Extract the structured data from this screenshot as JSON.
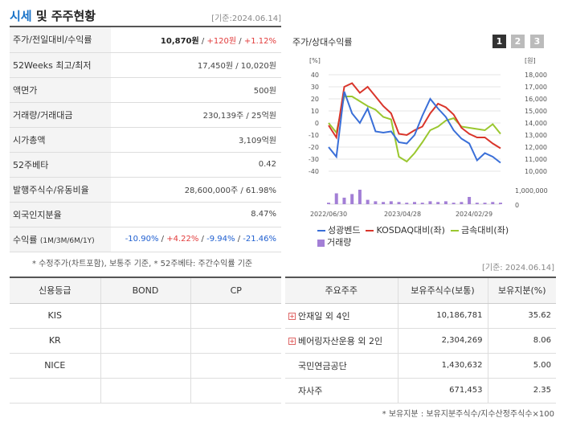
{
  "header": {
    "title_a": "시세",
    "title_b": " 및 주주현황",
    "date": "[기준:2024.06.14]"
  },
  "quote": {
    "rows": [
      {
        "label": "주가/전일대비/수익률",
        "price": "10,870원",
        "sep1": " / ",
        "change": "+120원",
        "sep2": " / ",
        "rate": "+1.12%"
      },
      {
        "label": "52Weeks 최고/최저",
        "value": "17,450원 / 10,020원"
      },
      {
        "label": "액면가",
        "value": "500원"
      },
      {
        "label": "거래량/거래대금",
        "value": "230,139주 / 25억원"
      },
      {
        "label": "시가총액",
        "value": "3,109억원"
      },
      {
        "label": "52주베타",
        "value": "0.42"
      },
      {
        "label": "발행주식수/유동비율",
        "value": "28,600,000주 / 61.98%"
      },
      {
        "label": "외국인지분율",
        "value": "8.47%"
      },
      {
        "label": "수익률",
        "label_sub": "(1M/3M/6M/1Y)",
        "r1": "-10.90%",
        "r2": "+4.22%",
        "r3": "-9.94%",
        "r4": "-21.46%",
        "sep": "/ "
      }
    ],
    "note": "* 수정주가(차트포함), 보통주 기준, * 52주베타: 주간수익률 기준"
  },
  "chart": {
    "title": "주가/상대수익률",
    "tabs": [
      "1",
      "2",
      "3"
    ],
    "left_unit": "[%]",
    "right_unit": "[원]",
    "left_ticks": [
      "40",
      "30",
      "20",
      "10",
      "0",
      "-10",
      "-20",
      "-30",
      "-40"
    ],
    "right_ticks": [
      "18,000",
      "17,000",
      "16,000",
      "15,000",
      "14,000",
      "13,000",
      "12,000",
      "11,000",
      "10,000"
    ],
    "vol_tick_top": "1,000,000",
    "vol_tick_bottom": "0",
    "x_ticks": [
      "2022/06/30",
      "2023/04/28",
      "2024/02/29"
    ],
    "legend": [
      "성광벤드",
      "KOSDAQ대비(좌)",
      "금속대비(좌)",
      "거래량"
    ],
    "colors": {
      "stock": "#3a6fd8",
      "kosdaq": "#d9352b",
      "metal": "#9ac72f",
      "volume": "#a37fd6"
    }
  },
  "chart_data": {
    "type": "line",
    "x_ticks": [
      "2022/06/30",
      "2023/04/28",
      "2024/02/29"
    ],
    "left_ylim": [
      -40,
      40
    ],
    "right_ylim": [
      10000,
      18000
    ],
    "series": [
      {
        "name": "성광벤드",
        "axis": "left",
        "values": [
          -20,
          -28,
          26,
          8,
          0,
          12,
          -7,
          -8,
          -7,
          -16,
          -17,
          -10,
          6,
          20,
          12,
          5,
          -6,
          -13,
          -17,
          -31,
          -25,
          -28,
          -33
        ]
      },
      {
        "name": "KOSDAQ대비(좌)",
        "axis": "left",
        "values": [
          -2,
          -12,
          30,
          33,
          25,
          30,
          22,
          14,
          8,
          -9,
          -10,
          -6,
          -3,
          8,
          16,
          13,
          7,
          -4,
          -9,
          -12,
          -12,
          -17,
          -21
        ]
      },
      {
        "name": "금속대비(좌)",
        "axis": "left",
        "values": [
          0,
          -8,
          22,
          22,
          18,
          14,
          11,
          5,
          3,
          -28,
          -32,
          -25,
          -16,
          -6,
          -3,
          2,
          4,
          -3,
          -4,
          -5,
          -6,
          -1,
          -9
        ]
      },
      {
        "name": "거래량",
        "axis": "volume",
        "values": [
          0.1,
          0.75,
          0.45,
          0.7,
          1.0,
          0.3,
          0.2,
          0.15,
          0.2,
          0.15,
          0.1,
          0.15,
          0.1,
          0.2,
          0.15,
          0.2,
          0.1,
          0.15,
          0.5,
          0.1,
          0.1,
          0.15,
          0.1
        ]
      }
    ]
  },
  "credit": {
    "headers": [
      "신용등급",
      "BOND",
      "CP"
    ],
    "rows": [
      [
        "KIS",
        "",
        ""
      ],
      [
        "KR",
        "",
        ""
      ],
      [
        "NICE",
        "",
        ""
      ]
    ]
  },
  "holders": {
    "date": "[기준: 2024.06.14]",
    "headers": [
      "주요주주",
      "보유주식수(보통)",
      "보유지분(%)"
    ],
    "rows": [
      {
        "name": "안재일 외 4인",
        "shares": "10,186,781",
        "pct": "35.62",
        "expand": true
      },
      {
        "name": "베어링자산운용 외 2인",
        "shares": "2,304,269",
        "pct": "8.06",
        "expand": true
      },
      {
        "name": "국민연금공단",
        "shares": "1,430,632",
        "pct": "5.00",
        "expand": false
      },
      {
        "name": "자사주",
        "shares": "671,453",
        "pct": "2.35",
        "expand": false
      }
    ],
    "note": "* 보유지분 : 보유지분주식수/지수산정주식수×100"
  }
}
